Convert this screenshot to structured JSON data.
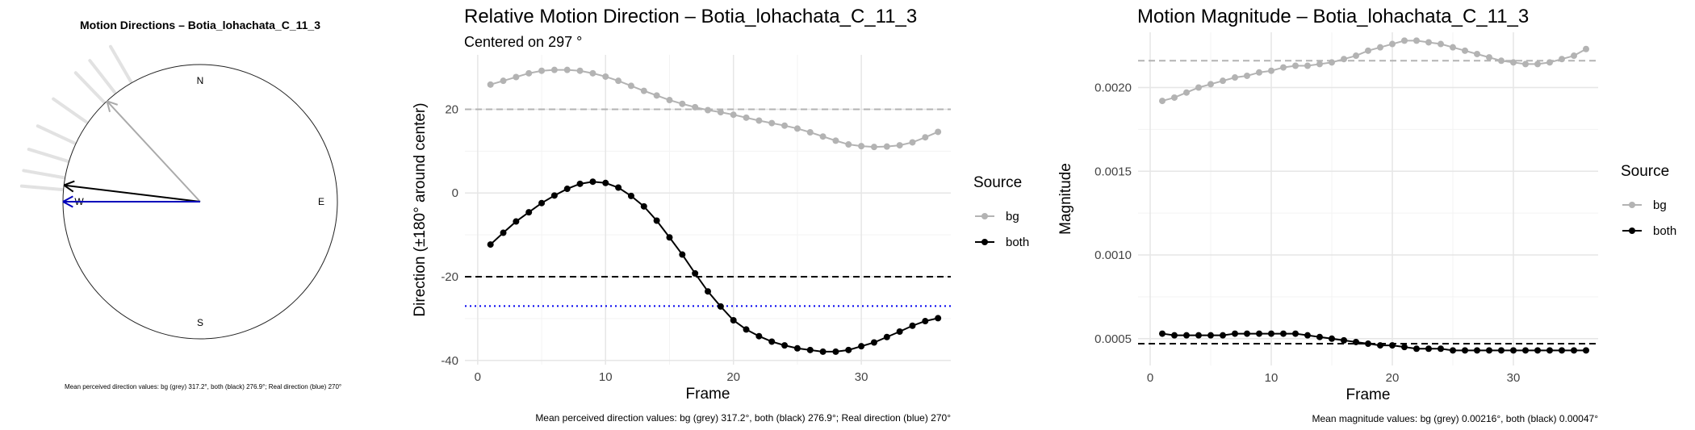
{
  "chart_data": [
    {
      "type": "polar",
      "title": "Motion Directions – Botia_lohachata_C_11_3",
      "compass_labels": [
        "N",
        "E",
        "S",
        "W"
      ],
      "bg_directions_deg": [
        330,
        322,
        316,
        305,
        295,
        287,
        280,
        275
      ],
      "arrows": [
        {
          "name": "bg",
          "direction_deg": 317.2,
          "color": "#aaaaaa"
        },
        {
          "name": "both",
          "direction_deg": 276.9,
          "color": "#000000"
        },
        {
          "name": "Real direction",
          "direction_deg": 270,
          "color": "#0000bb"
        }
      ],
      "caption": "Mean perceived direction values: bg (grey) 317.2°, both (black) 276.9°; Real direction (blue) 270°"
    },
    {
      "type": "line",
      "title": "Relative Motion Direction – Botia_lohachata_C_11_3",
      "subtitle": "Centered on  297 °",
      "xlabel": "Frame",
      "ylabel": "Direction (±180° around center)",
      "xlim": [
        -1,
        37
      ],
      "ylim": [
        -41,
        33
      ],
      "xticks": [
        0,
        10,
        20,
        30
      ],
      "yticks": [
        -40,
        -20,
        0,
        20
      ],
      "legend": {
        "title": "Source",
        "position": "right",
        "entries": [
          "bg",
          "both"
        ]
      },
      "x": [
        1,
        2,
        3,
        4,
        5,
        6,
        7,
        8,
        9,
        10,
        11,
        12,
        13,
        14,
        15,
        16,
        17,
        18,
        19,
        20,
        21,
        22,
        23,
        24,
        25,
        26,
        27,
        28,
        29,
        30,
        31,
        32,
        33,
        34,
        35,
        36
      ],
      "series": [
        {
          "name": "bg",
          "color": "#b3b3b3",
          "values": [
            25.9,
            26.8,
            27.7,
            28.6,
            29.2,
            29.4,
            29.4,
            29.2,
            28.6,
            27.8,
            26.8,
            25.6,
            24.4,
            23.3,
            22.2,
            21.3,
            20.5,
            19.8,
            19.3,
            18.7,
            18.0,
            17.3,
            16.7,
            16.1,
            15.4,
            14.5,
            13.5,
            12.5,
            11.6,
            11.2,
            11.0,
            11.1,
            11.4,
            12.1,
            13.3,
            14.6
          ]
        },
        {
          "name": "both",
          "color": "#000000",
          "values": [
            -12.3,
            -9.5,
            -6.8,
            -4.6,
            -2.4,
            -0.6,
            1.0,
            2.2,
            2.7,
            2.4,
            1.3,
            -0.7,
            -3.2,
            -6.6,
            -10.6,
            -14.7,
            -19.2,
            -23.5,
            -27.1,
            -30.4,
            -32.6,
            -34.2,
            -35.5,
            -36.4,
            -37.1,
            -37.5,
            -37.9,
            -37.9,
            -37.5,
            -36.6,
            -35.7,
            -34.4,
            -33.1,
            -31.7,
            -30.6,
            -29.9
          ]
        }
      ],
      "hlines": [
        {
          "name": "bg mean",
          "y": 20,
          "color": "#b3b3b3",
          "style": "dashed"
        },
        {
          "name": "both mean",
          "y": -20,
          "color": "#000000",
          "style": "dashed"
        },
        {
          "name": "real direction",
          "y": -27,
          "color": "#0000ee",
          "style": "dotted"
        }
      ],
      "grid": true,
      "caption": "Mean perceived direction values: bg (grey) 317.2°, both (black) 276.9°; Real direction (blue) 270°"
    },
    {
      "type": "line",
      "title": "Motion Magnitude – Botia_lohachata_C_11_3",
      "xlabel": "Frame",
      "ylabel": "Magnitude",
      "xlim": [
        -1,
        37
      ],
      "ylim": [
        0.00034,
        0.00233
      ],
      "xticks": [
        0,
        10,
        20,
        30
      ],
      "yticks": [
        0.0005,
        0.001,
        0.0015,
        0.002
      ],
      "ytick_labels": [
        "0.0005",
        "0.0010",
        "0.0015",
        "0.0020"
      ],
      "legend": {
        "title": "Source",
        "position": "right",
        "entries": [
          "bg",
          "both"
        ]
      },
      "x": [
        1,
        2,
        3,
        4,
        5,
        6,
        7,
        8,
        9,
        10,
        11,
        12,
        13,
        14,
        15,
        16,
        17,
        18,
        19,
        20,
        21,
        22,
        23,
        24,
        25,
        26,
        27,
        28,
        29,
        30,
        31,
        32,
        33,
        34,
        35,
        36
      ],
      "series": [
        {
          "name": "bg",
          "color": "#b3b3b3",
          "values": [
            0.00192,
            0.00194,
            0.00197,
            0.002,
            0.00202,
            0.00204,
            0.00206,
            0.00207,
            0.00209,
            0.0021,
            0.00212,
            0.00213,
            0.00213,
            0.00214,
            0.00215,
            0.00217,
            0.00219,
            0.00222,
            0.00224,
            0.00226,
            0.00228,
            0.00228,
            0.00227,
            0.00226,
            0.00224,
            0.00222,
            0.0022,
            0.00218,
            0.00216,
            0.00215,
            0.00214,
            0.00214,
            0.00215,
            0.00217,
            0.00219,
            0.00223
          ]
        },
        {
          "name": "both",
          "color": "#000000",
          "values": [
            0.00053,
            0.00052,
            0.00052,
            0.00052,
            0.00052,
            0.00052,
            0.00053,
            0.00053,
            0.00053,
            0.00053,
            0.00053,
            0.00053,
            0.00052,
            0.00051,
            0.0005,
            0.00049,
            0.00048,
            0.00047,
            0.00046,
            0.00046,
            0.00045,
            0.00044,
            0.00044,
            0.00044,
            0.00043,
            0.00043,
            0.00043,
            0.00043,
            0.00043,
            0.00043,
            0.00043,
            0.00043,
            0.00043,
            0.00043,
            0.00043,
            0.00043
          ]
        }
      ],
      "hlines": [
        {
          "name": "bg mean",
          "y": 0.00216,
          "color": "#b3b3b3",
          "style": "dashed"
        },
        {
          "name": "both mean",
          "y": 0.00047,
          "color": "#000000",
          "style": "dashed"
        }
      ],
      "grid": true,
      "caption": "Mean magnitude values: bg (grey) 0.00216°, both (black) 0.00047°"
    }
  ]
}
